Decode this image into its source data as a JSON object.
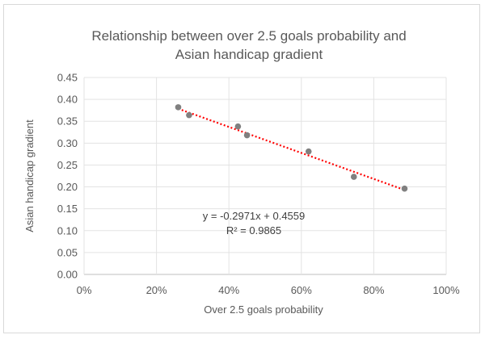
{
  "chart_data": {
    "type": "scatter",
    "title_lines": [
      "Relationship between over 2.5 goals probability and",
      "Asian handicap gradient"
    ],
    "xlabel": "Over 2.5 goals probability",
    "ylabel": "Asian handicap gradient",
    "xlim": [
      0,
      1
    ],
    "ylim": [
      0,
      0.45
    ],
    "x_tick_labels": [
      "0%",
      "20%",
      "40%",
      "60%",
      "80%",
      "100%"
    ],
    "y_tick_labels": [
      "0.00",
      "0.05",
      "0.10",
      "0.15",
      "0.20",
      "0.25",
      "0.30",
      "0.35",
      "0.40",
      "0.45"
    ],
    "x_ticks": [
      0,
      0.2,
      0.4,
      0.6,
      0.8,
      1.0
    ],
    "y_ticks": [
      0,
      0.05,
      0.1,
      0.15,
      0.2,
      0.25,
      0.3,
      0.35,
      0.4,
      0.45
    ],
    "points": [
      {
        "x": 0.26,
        "y": 0.382
      },
      {
        "x": 0.29,
        "y": 0.364
      },
      {
        "x": 0.425,
        "y": 0.338
      },
      {
        "x": 0.45,
        "y": 0.318
      },
      {
        "x": 0.62,
        "y": 0.281
      },
      {
        "x": 0.745,
        "y": 0.223
      },
      {
        "x": 0.885,
        "y": 0.196
      }
    ],
    "trendline": {
      "type": "linear",
      "slope": -0.2971,
      "intercept": 0.4559,
      "x_range": [
        0.26,
        0.885
      ],
      "color": "#ff0000",
      "style": "dotted"
    },
    "equation_text": "y = -0.2971x + 0.4559",
    "r2_text": "R² = 0.9865",
    "grid": true,
    "legend": "none",
    "marker_color": "#808080"
  }
}
